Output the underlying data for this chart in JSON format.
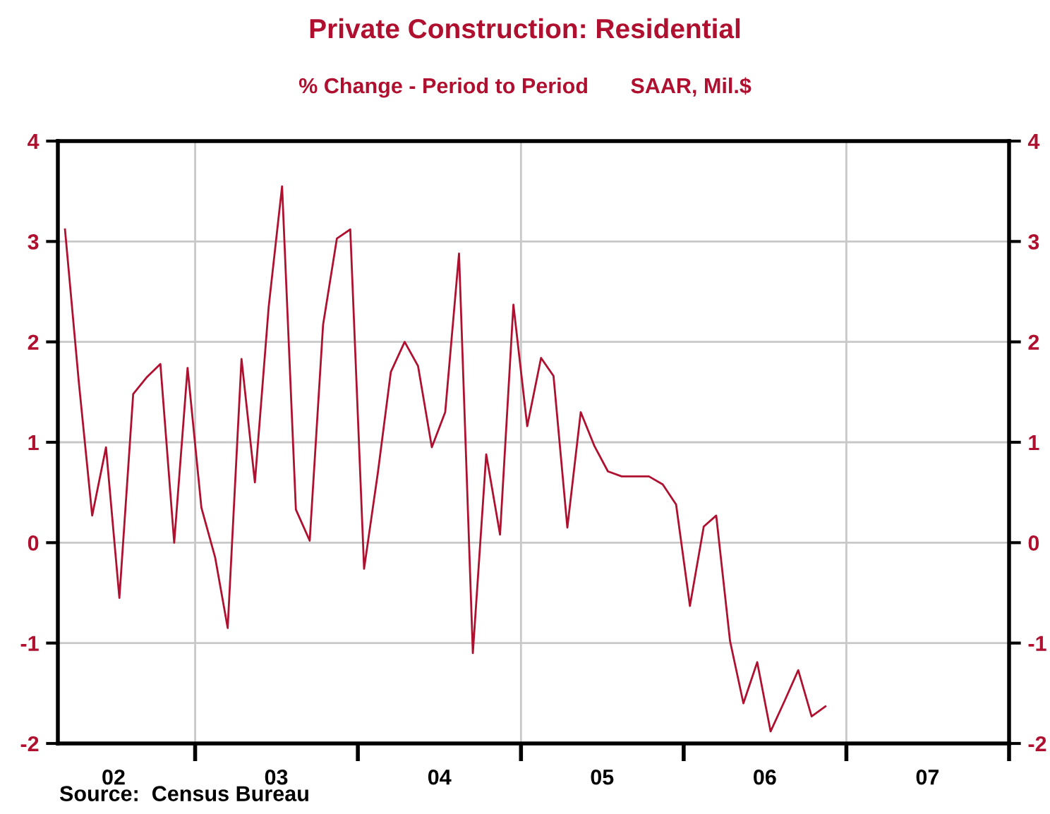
{
  "chart_data": {
    "type": "line",
    "title": "Private Construction: Residential",
    "subtitle": "% Change - Period to Period       SAAR, Mil.$",
    "x": [
      "2002-03-15",
      "2002-04-15",
      "2002-05-15",
      "2002-06-15",
      "2002-07-15",
      "2002-08-15",
      "2002-09-15",
      "2002-10-15",
      "2002-11-15",
      "2002-12-15",
      "2003-01-15",
      "2003-02-15",
      "2003-03-15",
      "2003-04-15",
      "2003-05-15",
      "2003-06-15",
      "2003-07-15",
      "2003-08-15",
      "2003-09-15",
      "2003-10-15",
      "2003-11-15",
      "2003-12-15",
      "2004-01-15",
      "2004-02-15",
      "2004-03-15",
      "2004-04-15",
      "2004-05-15",
      "2004-06-15",
      "2004-07-15",
      "2004-08-15",
      "2004-09-15",
      "2004-10-15",
      "2004-11-15",
      "2004-12-15",
      "2005-01-15",
      "2005-02-15",
      "2005-03-15",
      "2005-04-15",
      "2005-05-15",
      "2005-06-15",
      "2005-07-15",
      "2005-08-15",
      "2005-09-15",
      "2005-10-15",
      "2005-11-15",
      "2005-12-15",
      "2006-01-15",
      "2006-02-15",
      "2006-03-15",
      "2006-04-15",
      "2006-05-15",
      "2006-06-15",
      "2006-07-15",
      "2006-08-15",
      "2006-09-15",
      "2006-10-15",
      "2006-11-15"
    ],
    "series": [
      {
        "color": "#b0102f",
        "values": [
          3.12,
          1.6,
          0.27,
          0.95,
          -0.55,
          1.48,
          1.65,
          1.78,
          0.0,
          1.74,
          0.35,
          -0.15,
          -0.85,
          1.83,
          0.6,
          2.35,
          3.55,
          0.33,
          0.02,
          2.17,
          3.03,
          3.12,
          -0.26,
          0.7,
          1.7,
          2.0,
          1.76,
          0.95,
          1.3,
          2.88,
          -1.1,
          0.88,
          0.08,
          2.37,
          1.16,
          1.84,
          1.66,
          0.15,
          1.3,
          0.96,
          0.71,
          0.66,
          0.66,
          0.66,
          0.58,
          0.38,
          -0.63,
          0.16,
          0.27,
          -0.98,
          -1.6,
          -1.19,
          -1.88,
          -1.58,
          -1.27,
          -1.73,
          -1.63
        ]
      }
    ],
    "xlim": [
      "2002-02-27",
      "2008-01-01"
    ],
    "xticks": [
      {
        "value": "2002-07-02",
        "label": "02"
      },
      {
        "value": "2003-01-01",
        "label": null
      },
      {
        "value": "2003-07-02",
        "label": "03"
      },
      {
        "value": "2004-01-01",
        "label": null
      },
      {
        "value": "2004-07-02",
        "label": "04"
      },
      {
        "value": "2005-01-01",
        "label": null
      },
      {
        "value": "2005-07-02",
        "label": "05"
      },
      {
        "value": "2006-01-01",
        "label": null
      },
      {
        "value": "2006-07-02",
        "label": "06"
      },
      {
        "value": "2007-01-01",
        "label": null
      },
      {
        "value": "2007-07-02",
        "label": "07"
      },
      {
        "value": "2008-01-01",
        "label": null
      }
    ],
    "ylim": [
      -2,
      4
    ],
    "yticks": [
      -2,
      -1,
      0,
      1,
      2,
      3,
      4
    ],
    "y2lim": [
      -2,
      4
    ],
    "y2ticks": [
      -2,
      -1,
      0,
      1,
      2,
      3,
      4
    ],
    "grid": "y",
    "ref_lines": [
      {
        "axis": "x",
        "value": "2003-01-01",
        "color": "#c8c8c8"
      },
      {
        "axis": "x",
        "value": "2005-01-01",
        "color": "#c8c8c8"
      },
      {
        "axis": "x",
        "value": "2007-01-01",
        "color": "#c8c8c8"
      }
    ],
    "annotations": [
      "Source:  Census Bureau"
    ]
  }
}
